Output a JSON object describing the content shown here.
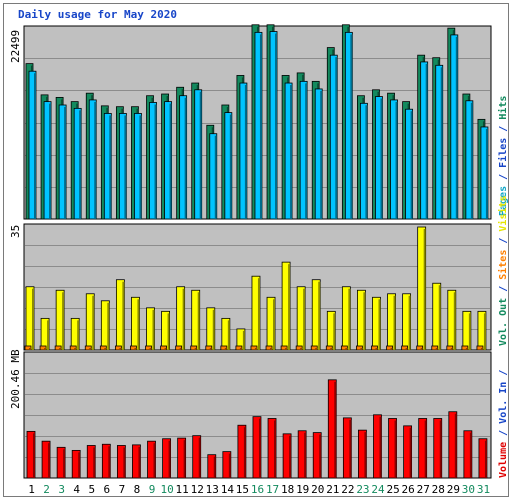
{
  "chart_data": {
    "type": "bar",
    "title": "Daily usage for May 2020",
    "categories": [
      "1",
      "2",
      "3",
      "4",
      "5",
      "6",
      "7",
      "8",
      "9",
      "10",
      "11",
      "12",
      "13",
      "14",
      "15",
      "16",
      "17",
      "18",
      "19",
      "20",
      "21",
      "22",
      "23",
      "24",
      "25",
      "26",
      "27",
      "28",
      "29",
      "30",
      "31"
    ],
    "weekend_days": [
      "2",
      "3",
      "9",
      "10",
      "16",
      "17",
      "23",
      "24",
      "30",
      "31"
    ],
    "panels": [
      {
        "id": "top",
        "ylabel_max": "22499",
        "ymax": 22499,
        "series": [
          {
            "name": "Hits",
            "color": "#138a5e",
            "values": [
              18400,
              14700,
              14400,
              13900,
              14900,
              13400,
              13300,
              13300,
              14600,
              14800,
              15600,
              16100,
              11100,
              13500,
              17000,
              23000,
              23000,
              17000,
              17300,
              16300,
              20300,
              23000,
              14600,
              15300,
              14900,
              13900,
              19400,
              19100,
              22600,
              14800,
              11800
            ]
          },
          {
            "name": "Files",
            "color": "#00c4ff",
            "values": [
              17500,
              13900,
              13500,
              13100,
              14100,
              12500,
              12500,
              12500,
              13800,
              13900,
              14600,
              15300,
              10100,
              12600,
              16100,
              22100,
              22200,
              16100,
              16300,
              15400,
              19400,
              22100,
              13700,
              14500,
              14100,
              13000,
              18600,
              18200,
              21800,
              14000,
              10900
            ]
          },
          {
            "name": "Pages",
            "color": "#14a8c8",
            "values": []
          }
        ]
      },
      {
        "id": "middle",
        "ylabel_max": "35",
        "ymax": 35,
        "series": [
          {
            "name": "Visits",
            "color": "#ffff00",
            "values": [
              18,
              9,
              17,
              9,
              16,
              14,
              20,
              15,
              12,
              11,
              18,
              17,
              12,
              9,
              6,
              21,
              15,
              25,
              18,
              20,
              11,
              18,
              17,
              15,
              16,
              16,
              35,
              19,
              17,
              11,
              11
            ]
          },
          {
            "name": "Sites",
            "color": "#ff8000",
            "values": [
              1,
              1,
              1,
              1,
              1,
              1,
              1,
              1,
              1,
              1,
              1,
              1,
              1,
              1,
              1,
              1,
              1,
              1,
              1,
              1,
              1,
              1,
              1,
              1,
              1,
              1,
              1,
              1,
              1,
              1,
              1
            ]
          }
        ]
      },
      {
        "id": "bottom",
        "ylabel_max": "200.46 MB",
        "ymax": 200.46,
        "series": [
          {
            "name": "Volume",
            "color": "#ff0000",
            "values": [
              76,
              60,
              50,
              45,
              53,
              55,
              53,
              54,
              60,
              64,
              65,
              69,
              38,
              43,
              86,
              100,
              97,
              72,
              77,
              74,
              160,
              98,
              78,
              103,
              97,
              85,
              97,
              97,
              108,
              77,
              64
            ]
          }
        ]
      }
    ],
    "legend_top": [
      "Hits",
      "Files",
      "Pages"
    ],
    "legend_middle": [
      "Visits",
      "Sites"
    ],
    "legend_bottom": [
      "Volume",
      "Vol. In",
      "Vol. Out"
    ],
    "grid": true
  }
}
